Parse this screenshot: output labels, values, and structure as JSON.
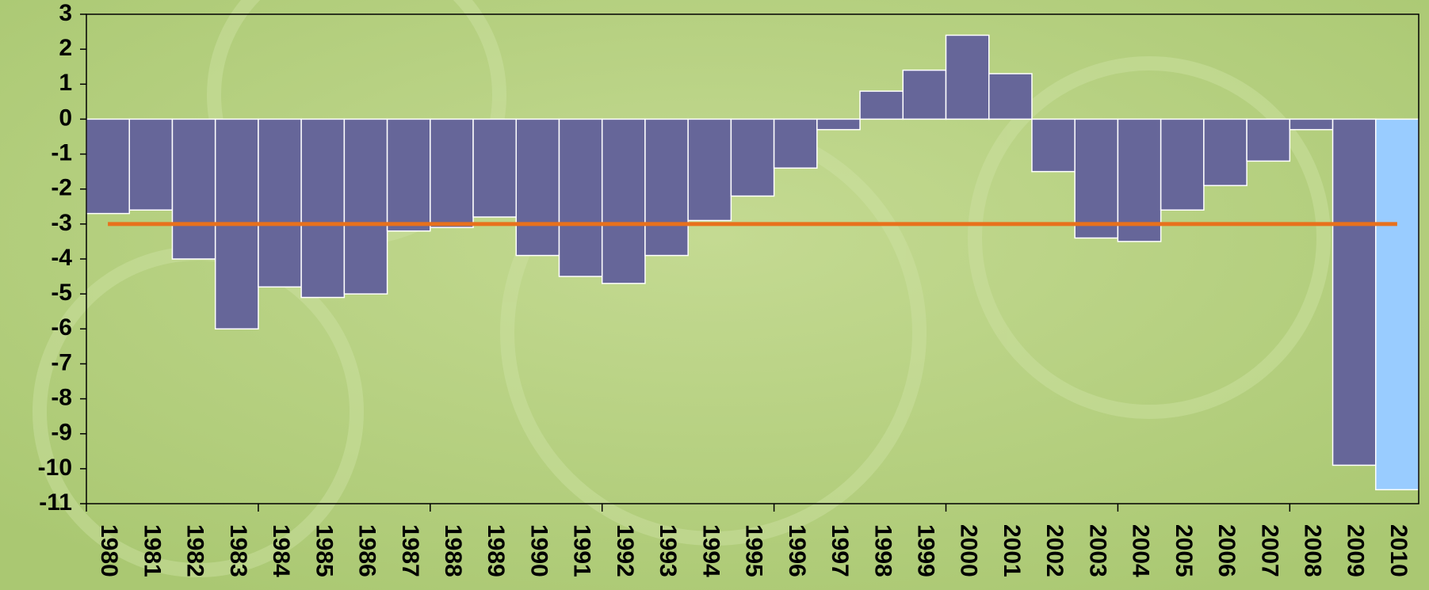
{
  "chart_data": {
    "type": "bar",
    "categories": [
      "1980",
      "1981",
      "1982",
      "1983",
      "1984",
      "1985",
      "1986",
      "1987",
      "1988",
      "1989",
      "1990",
      "1991",
      "1992",
      "1993",
      "1994",
      "1995",
      "1996",
      "1997",
      "1998",
      "1999",
      "2000",
      "2001",
      "2002",
      "2003",
      "2004",
      "2005",
      "2006",
      "2007",
      "2008",
      "2009",
      "2010"
    ],
    "values": [
      -2.7,
      -2.6,
      -4.0,
      -6.0,
      -4.8,
      -5.1,
      -5.0,
      -3.2,
      -3.1,
      -2.8,
      -3.9,
      -4.5,
      -4.7,
      -3.9,
      -2.9,
      -2.2,
      -1.4,
      -0.3,
      0.8,
      1.4,
      2.4,
      1.3,
      -1.5,
      -3.4,
      -3.5,
      -2.6,
      -1.9,
      -1.2,
      -0.3,
      -9.9,
      -10.6
    ],
    "colors": [
      "#666699",
      "#666699",
      "#666699",
      "#666699",
      "#666699",
      "#666699",
      "#666699",
      "#666699",
      "#666699",
      "#666699",
      "#666699",
      "#666699",
      "#666699",
      "#666699",
      "#666699",
      "#666699",
      "#666699",
      "#666699",
      "#666699",
      "#666699",
      "#666699",
      "#666699",
      "#666699",
      "#666699",
      "#666699",
      "#666699",
      "#666699",
      "#666699",
      "#666699",
      "#666699",
      "#99ccff"
    ],
    "ylim": [
      -11,
      3
    ],
    "yticks": [
      -11,
      -10,
      -9,
      -8,
      -7,
      -6,
      -5,
      -4,
      -3,
      -2,
      -1,
      0,
      1,
      2,
      3
    ],
    "reference_line": {
      "value": -3,
      "color": "#e8711c"
    },
    "grid": false
  }
}
